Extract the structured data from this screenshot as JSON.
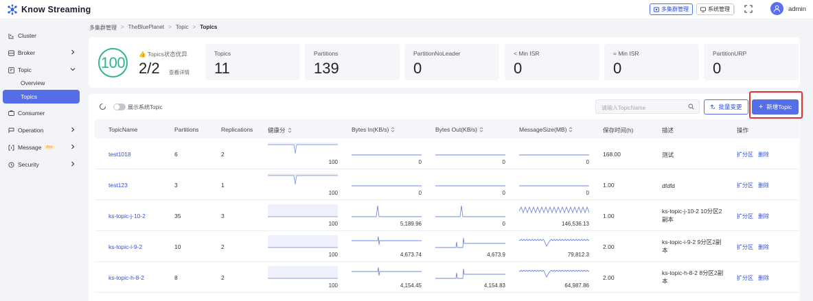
{
  "app": {
    "name": "Know Streaming"
  },
  "header": {
    "multi_cluster_label": "多集群管理",
    "system_label": "系统管理",
    "username": "admin"
  },
  "sidebar": {
    "items": [
      {
        "label": "Cluster",
        "icon": "cluster-icon"
      },
      {
        "label": "Broker",
        "icon": "broker-icon"
      },
      {
        "label": "Topic",
        "icon": "topic-icon"
      },
      {
        "label": "Overview"
      },
      {
        "label": "Topics"
      },
      {
        "label": "Consumer",
        "icon": "consumer-icon"
      },
      {
        "label": "Operation",
        "icon": "operation-icon"
      },
      {
        "label": "Message",
        "icon": "message-icon",
        "badge": "Pro"
      },
      {
        "label": "Security",
        "icon": "security-icon"
      }
    ]
  },
  "breadcrumb": [
    "多集群管理",
    "TheBluePlanet",
    "Topic",
    "Topics"
  ],
  "stats": {
    "health_score": "100",
    "state_label": "Topics状态优异",
    "state_value": "2/2",
    "detail_link": "查看详情",
    "cards": [
      {
        "label": "Topics",
        "value": "11"
      },
      {
        "label": "Partitions",
        "value": "139"
      },
      {
        "label": "PartitionNoLeader",
        "value": "0"
      },
      {
        "label": "< Min ISR",
        "value": "0"
      },
      {
        "label": "= Min ISR",
        "value": "0"
      },
      {
        "label": "PartitionURP",
        "value": "0"
      }
    ]
  },
  "toolbar": {
    "toggle_label": "展示系统Topic",
    "search_placeholder": "请输入TopicName",
    "batch_label": "批量变更",
    "new_label": "新增Topic"
  },
  "table": {
    "columns": [
      "TopicName",
      "Partitions",
      "Replications",
      "健康分",
      "Bytes In(KB/s)",
      "Bytes Out(KB/s)",
      "MessageSize(MB)",
      "保存时间(h)",
      "描述",
      "操作"
    ],
    "action_expand": "扩分区",
    "action_delete": "删除",
    "rows": [
      {
        "name": "test1018",
        "partitions": "6",
        "replications": "2",
        "health": "100",
        "bytes_in": "0",
        "bytes_out": "0",
        "msg_size": "0",
        "retention": "168.00",
        "desc": "测试"
      },
      {
        "name": "test123",
        "partitions": "3",
        "replications": "1",
        "health": "100",
        "bytes_in": "0",
        "bytes_out": "0",
        "msg_size": "0",
        "retention": "1.00",
        "desc": "dfdfd"
      },
      {
        "name": "ks-topic-j-10-2",
        "partitions": "35",
        "replications": "3",
        "health": "100",
        "bytes_in": "5,189.96",
        "bytes_out": "0",
        "msg_size": "146,536.13",
        "retention": "1.00",
        "desc": "ks-topic-j-10-2 10分区2副本"
      },
      {
        "name": "ks-topic-i-9-2",
        "partitions": "10",
        "replications": "2",
        "health": "100",
        "bytes_in": "4,673.74",
        "bytes_out": "4,673.9",
        "msg_size": "79,812.3",
        "retention": "2.00",
        "desc": "ks-topic-i-9-2 9分区2副本"
      },
      {
        "name": "ks-topic-h-8-2",
        "partitions": "8",
        "replications": "2",
        "health": "100",
        "bytes_in": "4,154.45",
        "bytes_out": "4,154.83",
        "msg_size": "64,987.86",
        "retention": "2.00",
        "desc": "ks-topic-h-8-2 8分区2副本"
      }
    ]
  },
  "colors": {
    "accent": "#556ee6",
    "health": "#34b48a",
    "highlight": "#e03434"
  }
}
